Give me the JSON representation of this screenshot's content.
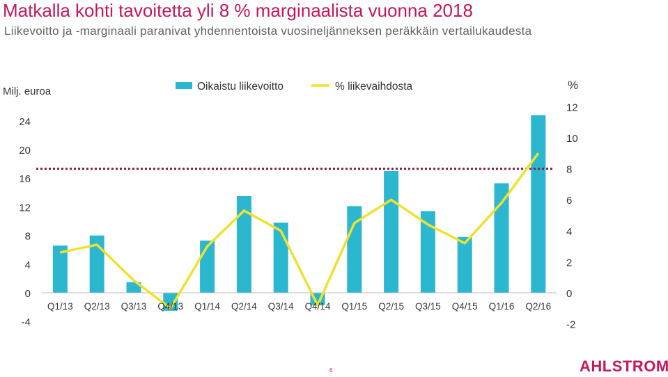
{
  "slide": {
    "title": "Matkalla kohti tavoitetta yli 8 % marginaalista vuonna 2018",
    "subtitle": "Liikevoitto ja -marginaali paranivat yhdennentoista vuosineljänneksen peräkkäin vertailukaudesta",
    "page_number": "6",
    "logo_text": "AHLSTROM"
  },
  "colors": {
    "title": "#C2185B",
    "subtitle": "#606060",
    "bar": "#2BB7CF",
    "line": "#F1E02E",
    "target_line": "#8B1A3B",
    "text": "#333333",
    "page_number": "#C2185B",
    "logo": "#C2185B"
  },
  "chart_data": {
    "type": "bar",
    "legend_position": "top",
    "grid": false,
    "categories": [
      "Q1/13",
      "Q2/13",
      "Q3/13",
      "Q4/13",
      "Q1/14",
      "Q2/14",
      "Q3/14",
      "Q4/14",
      "Q1/15",
      "Q2/15",
      "Q3/15",
      "Q4/15",
      "Q1/16",
      "Q2/16"
    ],
    "series": [
      {
        "name": "Oikaistu liikevoitto",
        "type": "bar",
        "axis": "left",
        "values": [
          6.6,
          8.0,
          1.5,
          -2.5,
          7.3,
          13.5,
          9.8,
          -1.7,
          12.1,
          17.0,
          11.4,
          7.8,
          15.3,
          24.8
        ]
      },
      {
        "name": "% liikevaihdosta",
        "type": "line",
        "axis": "right",
        "values": [
          2.6,
          3.1,
          0.8,
          -1.0,
          3.0,
          5.3,
          4.0,
          -0.8,
          4.5,
          6.0,
          4.4,
          3.2,
          5.8,
          9.0
        ]
      }
    ],
    "target_line": {
      "axis": "right",
      "value": 8
    },
    "y_left": {
      "label": "Milj. euroa",
      "ylim": [
        -4,
        24
      ],
      "ticks": [
        -4,
        0,
        4,
        8,
        12,
        16,
        20,
        24
      ]
    },
    "y_right": {
      "label": "%",
      "ylim": [
        -2,
        12
      ],
      "ticks": [
        -2,
        0,
        2,
        4,
        6,
        8,
        10,
        12
      ]
    }
  }
}
